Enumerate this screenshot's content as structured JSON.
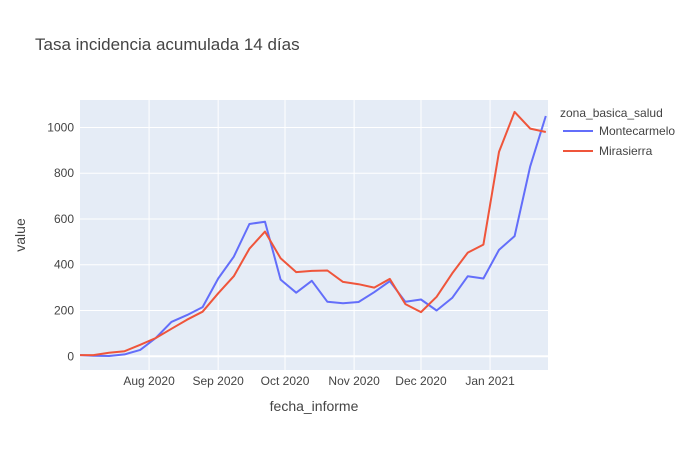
{
  "chart_data": {
    "type": "line",
    "title": "Tasa incidencia acumulada 14 días",
    "xlabel": "fecha_informe",
    "ylabel": "value",
    "legend_title": "zona_basica_salud",
    "legend_position": "top-right outside",
    "grid": true,
    "ylim": [
      -60,
      1120
    ],
    "yticks": [
      0,
      200,
      400,
      600,
      800,
      1000
    ],
    "xlim": [
      "2020-07-01",
      "2021-01-27"
    ],
    "xticks": [
      {
        "date": "2020-08-01",
        "label": "Aug 2020"
      },
      {
        "date": "2020-09-01",
        "label": "Sep 2020"
      },
      {
        "date": "2020-10-01",
        "label": "Oct 2020"
      },
      {
        "date": "2020-11-01",
        "label": "Nov 2020"
      },
      {
        "date": "2020-12-01",
        "label": "Dec 2020"
      },
      {
        "date": "2021-01-01",
        "label": "Jan 2021"
      }
    ],
    "x": [
      "2020-07-01",
      "2020-07-07",
      "2020-07-14",
      "2020-07-21",
      "2020-07-28",
      "2020-08-04",
      "2020-08-11",
      "2020-08-18",
      "2020-08-25",
      "2020-09-01",
      "2020-09-08",
      "2020-09-15",
      "2020-09-22",
      "2020-09-29",
      "2020-10-06",
      "2020-10-13",
      "2020-10-20",
      "2020-10-27",
      "2020-11-03",
      "2020-11-10",
      "2020-11-17",
      "2020-11-24",
      "2020-12-01",
      "2020-12-08",
      "2020-12-15",
      "2020-12-22",
      "2020-12-29",
      "2021-01-05",
      "2021-01-12",
      "2021-01-19",
      "2021-01-26"
    ],
    "series": [
      {
        "name": "Montecarmelo",
        "color": "#636efa",
        "values": [
          5,
          2,
          1,
          8,
          28,
          80,
          150,
          180,
          215,
          340,
          435,
          578,
          588,
          335,
          278,
          330,
          238,
          232,
          237,
          280,
          328,
          238,
          248,
          200,
          255,
          350,
          340,
          465,
          525,
          830,
          1050
        ]
      },
      {
        "name": "Mirasierra",
        "color": "#ef553b",
        "values": [
          5,
          5,
          15,
          22,
          50,
          80,
          120,
          160,
          195,
          275,
          350,
          470,
          545,
          428,
          368,
          373,
          375,
          325,
          315,
          300,
          338,
          228,
          193,
          260,
          362,
          453,
          488,
          893,
          1068,
          995,
          980
        ]
      }
    ]
  }
}
